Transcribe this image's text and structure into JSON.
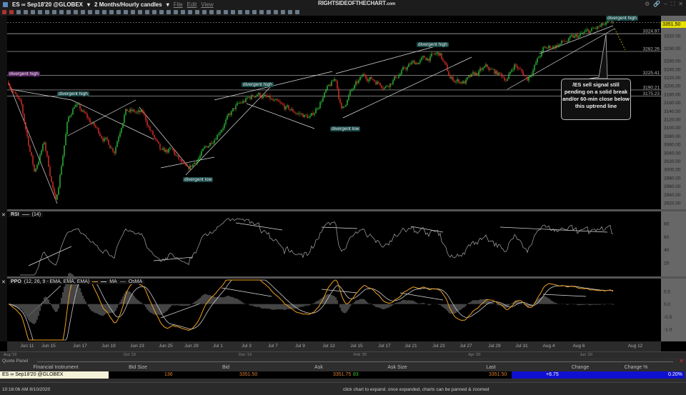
{
  "window": {
    "symbol": "ES ∞ Sep18'20 @GLOBEX",
    "timeframe": "2 Months/Hourly candles",
    "menu": [
      "File",
      "Edit",
      "View"
    ],
    "logo": "RIGHTSIDEOFTHECHART",
    "logo_suffix": ".com"
  },
  "price_pane": {
    "last_price": "3351.50",
    "axis_ticks": [
      "3320.00",
      "3290.00",
      "3260.00",
      "3240.00",
      "3220.00",
      "3200.00",
      "3180.00",
      "3160.00",
      "3140.00",
      "3120.00",
      "3100.00",
      "3080.00",
      "3060.00",
      "3040.00",
      "3020.00",
      "3000.00",
      "2980.00",
      "2960.00",
      "2940.00",
      "2920.00"
    ],
    "levels": [
      "3324.97",
      "3282.26",
      "3225.41",
      "3190.21",
      "3175.23"
    ],
    "annotations": [
      "divergent high",
      "divergent high",
      "divergent high",
      "divergent high",
      "divergent high",
      "divergent low",
      "divergent low"
    ],
    "callout": "/ES sell signal still pending on a solid break and/or 60-min close below this uptrend line"
  },
  "rsi_pane": {
    "name": "RSI",
    "params": "(14)",
    "ticks": [
      "80",
      "60",
      "40",
      "20"
    ]
  },
  "ppo_pane": {
    "name": "PPO",
    "params": "(12, 26, 9 - EMA, EMA, EMA)",
    "legend": [
      "MA",
      "OsMA"
    ],
    "ticks": [
      "0.5",
      "0.0",
      "-0.5",
      "-1.0"
    ]
  },
  "date_axis": [
    "Jun 11",
    "Jun 15",
    "Jun 17",
    "Jun 19",
    "Jun 23",
    "Jun 25",
    "Jun 29",
    "Jul 1",
    "Jul 3",
    "Jul 7",
    "Jul 9",
    "Jul 13",
    "Jul 15",
    "Jul 17",
    "Jul 21",
    "Jul 23",
    "Jul 27",
    "Jul 29",
    "Jul 31",
    "Aug 4",
    "Aug 6",
    "Aug 12"
  ],
  "scroll_labels": [
    "Aug '19",
    "Oct '19",
    "Dec '19",
    "Feb '20",
    "Apr '20",
    "Jun '20"
  ],
  "quote_panel": {
    "title": "Quote Panel",
    "headers": [
      "Financial Instrument",
      "Bid Size",
      "Bid",
      "Ask",
      "Ask Size",
      "Last",
      "Change",
      "Change %"
    ],
    "row": {
      "instrument": "ES ∞ Sep18'20 @GLOBEX",
      "bid_size": "136",
      "bid": "3351.50",
      "ask": "3351.75",
      "ask_size": "83",
      "last": "3351.50",
      "change": "+6.75",
      "change_pct": "0.20%"
    }
  },
  "status": {
    "time": "10:16:06 AM 8/10/2020",
    "hint": "click chart to expand. once expanded, charts can be panned & zoomed"
  },
  "colors": {
    "up": "#2fbf3a",
    "down": "#e0302a",
    "ppo": "#f0a020",
    "ma": "#cccccc",
    "change_bg": "#1010d0",
    "last_price_bg": "#e8e000"
  },
  "chart_data": {
    "type": "candlestick",
    "interval": "hourly",
    "ylim": [
      2910,
      3360
    ],
    "x_ticks": [
      "2020-06-11",
      "2020-06-15",
      "2020-06-17",
      "2020-06-19",
      "2020-06-23",
      "2020-06-25",
      "2020-06-29",
      "2020-07-01",
      "2020-07-03",
      "2020-07-07",
      "2020-07-09",
      "2020-07-13",
      "2020-07-15",
      "2020-07-17",
      "2020-07-21",
      "2020-07-23",
      "2020-07-27",
      "2020-07-29",
      "2020-07-31",
      "2020-08-04",
      "2020-08-06",
      "2020-08-12"
    ],
    "approx_path": [
      [
        "2020-06-07T13",
        3209
      ],
      [
        "2020-06-09T22",
        3149
      ],
      [
        "2020-06-12T08",
        2995
      ],
      [
        "2020-06-14T05",
        3064
      ],
      [
        "2020-06-15T11",
        2918
      ],
      [
        "2020-06-16T05",
        3115
      ],
      [
        "2020-06-16T16",
        3158
      ],
      [
        "2020-06-17T22",
        3106
      ],
      [
        "2020-06-19T19",
        3046
      ],
      [
        "2020-06-21T07",
        3141
      ],
      [
        "2020-06-23T10",
        3132
      ],
      [
        "2020-06-24T16",
        3038
      ],
      [
        "2020-06-25T21",
        3046
      ],
      [
        "2020-06-28T08",
        2995
      ],
      [
        "2020-06-30T05",
        3055
      ],
      [
        "2020-07-02T06",
        3149
      ],
      [
        "2020-07-04T15",
        3183
      ],
      [
        "2020-07-07T16",
        3149
      ],
      [
        "2020-07-10T12",
        3123
      ],
      [
        "2020-07-12T12",
        3183
      ],
      [
        "2020-07-13T12",
        3217
      ],
      [
        "2020-07-13T22",
        3141
      ],
      [
        "2020-07-14T13",
        3183
      ],
      [
        "2020-07-15T13",
        3226
      ],
      [
        "2020-07-17T05",
        3200
      ],
      [
        "2020-07-21T00",
        3252
      ],
      [
        "2020-07-23T03",
        3277
      ],
      [
        "2020-07-24T17",
        3217
      ],
      [
        "2020-07-26T19",
        3209
      ],
      [
        "2020-07-28T10",
        3243
      ],
      [
        "2020-07-29T23",
        3217
      ],
      [
        "2020-07-30T11",
        3252
      ],
      [
        "2020-07-31T20",
        3217
      ],
      [
        "2020-08-03T04",
        3286
      ],
      [
        "2020-08-05T12",
        3311
      ],
      [
        "2020-08-07T12",
        3334
      ],
      [
        "2020-08-09T16",
        3351.5
      ]
    ],
    "horizontal_levels": [
      3324.97,
      3282.26,
      3225.41,
      3190.21,
      3175.23
    ],
    "rsi_ylim": [
      10,
      90
    ],
    "ppo_ylim": [
      -1.4,
      0.85
    ],
    "grid": false
  }
}
